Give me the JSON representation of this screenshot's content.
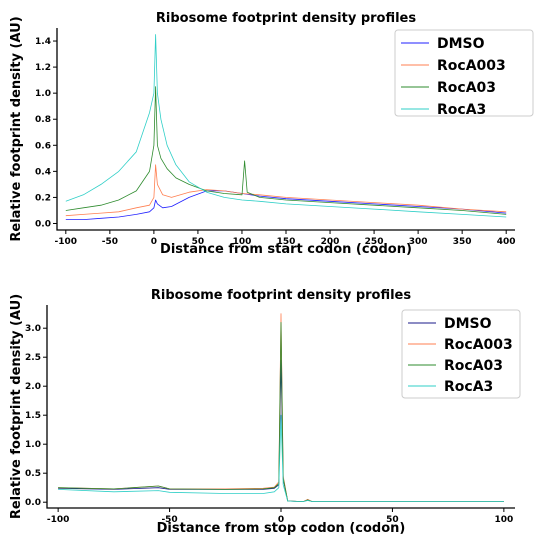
{
  "chart_data": [
    {
      "type": "line",
      "title": "Ribosome footprint density profiles",
      "xlabel": "Distance from start codon (codon)",
      "ylabel": "Relative footprint density (AU)",
      "xlim": [
        -110,
        410
      ],
      "ylim": [
        -0.05,
        1.5
      ],
      "xticks": [
        -100,
        -50,
        0,
        50,
        100,
        150,
        200,
        250,
        300,
        350,
        400
      ],
      "yticks": [
        0.0,
        0.2,
        0.4,
        0.6,
        0.8,
        1.0,
        1.2,
        1.4
      ],
      "legend_position": "top-right",
      "grid": false,
      "series": [
        {
          "name": "DMSO",
          "color": "#1f1fff",
          "points": [
            [
              -100,
              0.03
            ],
            [
              -80,
              0.03
            ],
            [
              -60,
              0.04
            ],
            [
              -40,
              0.05
            ],
            [
              -20,
              0.07
            ],
            [
              -5,
              0.09
            ],
            [
              0,
              0.12
            ],
            [
              2,
              0.18
            ],
            [
              4,
              0.15
            ],
            [
              10,
              0.12
            ],
            [
              20,
              0.13
            ],
            [
              40,
              0.2
            ],
            [
              60,
              0.25
            ],
            [
              80,
              0.25
            ],
            [
              100,
              0.23
            ],
            [
              120,
              0.21
            ],
            [
              150,
              0.19
            ],
            [
              200,
              0.17
            ],
            [
              250,
              0.15
            ],
            [
              300,
              0.13
            ],
            [
              350,
              0.11
            ],
            [
              400,
              0.08
            ]
          ]
        },
        {
          "name": "RocA003",
          "color": "#ff7f50",
          "points": [
            [
              -100,
              0.06
            ],
            [
              -80,
              0.07
            ],
            [
              -60,
              0.08
            ],
            [
              -40,
              0.09
            ],
            [
              -20,
              0.12
            ],
            [
              -5,
              0.14
            ],
            [
              0,
              0.2
            ],
            [
              2,
              0.45
            ],
            [
              4,
              0.3
            ],
            [
              10,
              0.22
            ],
            [
              20,
              0.2
            ],
            [
              40,
              0.24
            ],
            [
              60,
              0.26
            ],
            [
              80,
              0.25
            ],
            [
              100,
              0.23
            ],
            [
              120,
              0.22
            ],
            [
              150,
              0.2
            ],
            [
              200,
              0.18
            ],
            [
              250,
              0.16
            ],
            [
              300,
              0.14
            ],
            [
              350,
              0.11
            ],
            [
              400,
              0.09
            ]
          ]
        },
        {
          "name": "RocA03",
          "color": "#2e8b2e",
          "points": [
            [
              -100,
              0.1
            ],
            [
              -80,
              0.12
            ],
            [
              -60,
              0.14
            ],
            [
              -40,
              0.18
            ],
            [
              -20,
              0.25
            ],
            [
              -10,
              0.35
            ],
            [
              -5,
              0.4
            ],
            [
              0,
              0.6
            ],
            [
              2,
              1.05
            ],
            [
              4,
              0.6
            ],
            [
              8,
              0.5
            ],
            [
              15,
              0.42
            ],
            [
              25,
              0.35
            ],
            [
              40,
              0.3
            ],
            [
              60,
              0.25
            ],
            [
              80,
              0.23
            ],
            [
              100,
              0.22
            ],
            [
              103,
              0.48
            ],
            [
              106,
              0.24
            ],
            [
              120,
              0.2
            ],
            [
              150,
              0.18
            ],
            [
              200,
              0.16
            ],
            [
              250,
              0.14
            ],
            [
              300,
              0.12
            ],
            [
              350,
              0.1
            ],
            [
              400,
              0.07
            ]
          ]
        },
        {
          "name": "RocA3",
          "color": "#2fcfc7",
          "points": [
            [
              -100,
              0.17
            ],
            [
              -80,
              0.22
            ],
            [
              -60,
              0.3
            ],
            [
              -40,
              0.4
            ],
            [
              -20,
              0.55
            ],
            [
              -10,
              0.75
            ],
            [
              -5,
              0.85
            ],
            [
              0,
              1.0
            ],
            [
              2,
              1.45
            ],
            [
              4,
              1.0
            ],
            [
              8,
              0.8
            ],
            [
              15,
              0.6
            ],
            [
              25,
              0.45
            ],
            [
              40,
              0.32
            ],
            [
              60,
              0.24
            ],
            [
              80,
              0.2
            ],
            [
              100,
              0.18
            ],
            [
              120,
              0.17
            ],
            [
              150,
              0.15
            ],
            [
              200,
              0.13
            ],
            [
              250,
              0.11
            ],
            [
              300,
              0.09
            ],
            [
              350,
              0.07
            ],
            [
              400,
              0.05
            ]
          ]
        }
      ]
    },
    {
      "type": "line",
      "title": "Ribosome footprint density profiles",
      "xlabel": "Distance from stop codon (codon)",
      "ylabel": "Relative footprint density (AU)",
      "xlim": [
        -105,
        105
      ],
      "ylim": [
        -0.1,
        3.4
      ],
      "xticks": [
        -100,
        -50,
        0,
        50,
        100
      ],
      "yticks": [
        0.0,
        0.5,
        1.0,
        1.5,
        2.0,
        2.5,
        3.0
      ],
      "legend_position": "top-right",
      "grid": false,
      "series": [
        {
          "name": "DMSO",
          "color": "#1a1a8a",
          "points": [
            [
              -100,
              0.24
            ],
            [
              -75,
              0.22
            ],
            [
              -55,
              0.25
            ],
            [
              -50,
              0.22
            ],
            [
              -25,
              0.22
            ],
            [
              -8,
              0.22
            ],
            [
              -3,
              0.24
            ],
            [
              -1,
              0.3
            ],
            [
              0,
              2.45
            ],
            [
              1,
              0.4
            ],
            [
              3,
              0.02
            ],
            [
              10,
              0.01
            ],
            [
              12,
              0.04
            ],
            [
              14,
              0.01
            ],
            [
              50,
              0.01
            ],
            [
              100,
              0.01
            ]
          ]
        },
        {
          "name": "RocA003",
          "color": "#ff7f50",
          "points": [
            [
              -100,
              0.25
            ],
            [
              -75,
              0.23
            ],
            [
              -55,
              0.28
            ],
            [
              -50,
              0.23
            ],
            [
              -25,
              0.23
            ],
            [
              -8,
              0.24
            ],
            [
              -3,
              0.26
            ],
            [
              -1,
              0.35
            ],
            [
              0,
              3.25
            ],
            [
              1,
              0.45
            ],
            [
              3,
              0.02
            ],
            [
              10,
              0.01
            ],
            [
              12,
              0.05
            ],
            [
              14,
              0.01
            ],
            [
              50,
              0.01
            ],
            [
              100,
              0.01
            ]
          ]
        },
        {
          "name": "RocA03",
          "color": "#2e8b2e",
          "points": [
            [
              -100,
              0.25
            ],
            [
              -75,
              0.23
            ],
            [
              -55,
              0.28
            ],
            [
              -50,
              0.23
            ],
            [
              -25,
              0.22
            ],
            [
              -8,
              0.23
            ],
            [
              -3,
              0.25
            ],
            [
              -1,
              0.32
            ],
            [
              0,
              3.1
            ],
            [
              1,
              0.42
            ],
            [
              3,
              0.02
            ],
            [
              10,
              0.01
            ],
            [
              12,
              0.04
            ],
            [
              14,
              0.01
            ],
            [
              50,
              0.01
            ],
            [
              100,
              0.01
            ]
          ]
        },
        {
          "name": "RocA3",
          "color": "#2fcfc7",
          "points": [
            [
              -100,
              0.22
            ],
            [
              -75,
              0.18
            ],
            [
              -55,
              0.2
            ],
            [
              -50,
              0.17
            ],
            [
              -25,
              0.15
            ],
            [
              -8,
              0.15
            ],
            [
              -3,
              0.18
            ],
            [
              -1,
              0.25
            ],
            [
              0,
              1.5
            ],
            [
              1,
              0.3
            ],
            [
              3,
              0.02
            ],
            [
              10,
              0.01
            ],
            [
              12,
              0.03
            ],
            [
              14,
              0.01
            ],
            [
              50,
              0.01
            ],
            [
              100,
              0.01
            ]
          ]
        }
      ]
    }
  ]
}
